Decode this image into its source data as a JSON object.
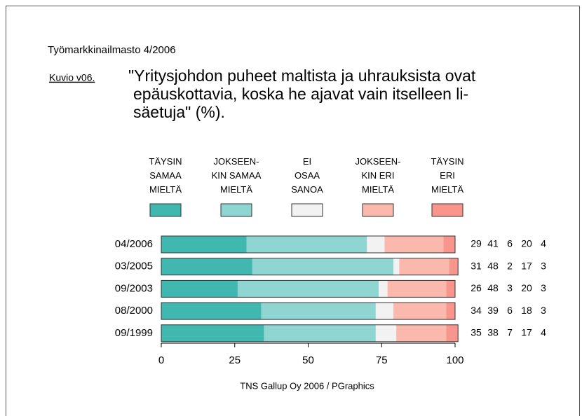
{
  "chart_data": {
    "type": "stacked-barh",
    "supertitle": "Työmarkkinailmasto 4/2006",
    "figure_label": "Kuvio v06.",
    "title": [
      "\"Yritysjohdon puheet maltista ja uhrauksista ovat",
      "epäuskottavia, koska he ajavat vain itselleen li-",
      "säetuja\" (%)."
    ],
    "categories": [
      "04/2006",
      "03/2005",
      "09/2003",
      "08/2000",
      "09/1999"
    ],
    "series": [
      {
        "name": "TÄYSIN\nSAMAA\nMIELTÄ",
        "color": "#40b8b0",
        "values": [
          29,
          31,
          26,
          34,
          35
        ]
      },
      {
        "name": "JOKSEEN-\nKIN SAMAA\nMIELTÄ",
        "color": "#8fd6d2",
        "values": [
          41,
          48,
          48,
          39,
          38
        ]
      },
      {
        "name": "EI\nOSAA\nSANOA",
        "color": "#f2f2f2",
        "values": [
          6,
          2,
          3,
          6,
          7
        ]
      },
      {
        "name": "JOKSEEN-\nKIN ERI\nMIELTÄ",
        "color": "#fbb9ae",
        "values": [
          20,
          17,
          20,
          18,
          17
        ]
      },
      {
        "name": "TÄYSIN\nERI\nMIELTÄ",
        "color": "#f8968e",
        "values": [
          4,
          3,
          3,
          3,
          4
        ]
      }
    ],
    "xlim": [
      0,
      100
    ],
    "xticks": [
      0,
      25,
      50,
      75,
      100
    ],
    "source": "TNS Gallup Oy 2006 / PGraphics"
  }
}
